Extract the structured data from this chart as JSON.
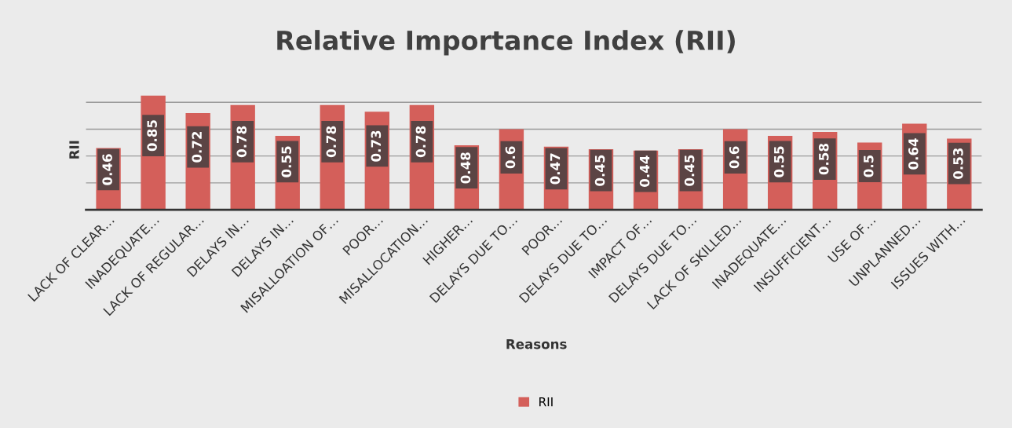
{
  "chart_data": {
    "type": "bar",
    "title": "Relative Importance Index (RII)",
    "xlabel": "Reasons",
    "ylabel": "RII",
    "categories": [
      "LACK OF CLEAR…",
      "INADEQUATE…",
      "LACK OF REGULAR…",
      "DELAYS IN…",
      "DELAYS IN…",
      "MISALLOATION OF…",
      "POOR…",
      "MISALLOCATION…",
      "HIGHER…",
      "DELAYS DUE TO…",
      "POOR…",
      "DELAYS DUE TO…",
      "IMPACT OF…",
      "DELAYS DUE TO…",
      "LACK OF SKILLED…",
      "INADEQUATE…",
      "INSUFFICIENT…",
      "USE OF…",
      "UNPLANNED…",
      "ISSUES WITH…"
    ],
    "series": [
      {
        "name": "RII",
        "color": "#d45f5a",
        "values": [
          0.46,
          0.85,
          0.72,
          0.78,
          0.55,
          0.78,
          0.73,
          0.78,
          0.48,
          0.6,
          0.47,
          0.45,
          0.44,
          0.45,
          0.6,
          0.55,
          0.58,
          0.5,
          0.64,
          0.53
        ]
      }
    ],
    "yticks": [
      {
        "value": 0,
        "label": null
      },
      {
        "value": 0.2,
        "label": null
      },
      {
        "value": 0.4,
        "label": null
      },
      {
        "value": 0.6,
        "label": null
      },
      {
        "value": 0.8,
        "label": null
      }
    ],
    "tick_labels": "x",
    "grid": "y",
    "legend": "bottom",
    "data_labels": true
  }
}
